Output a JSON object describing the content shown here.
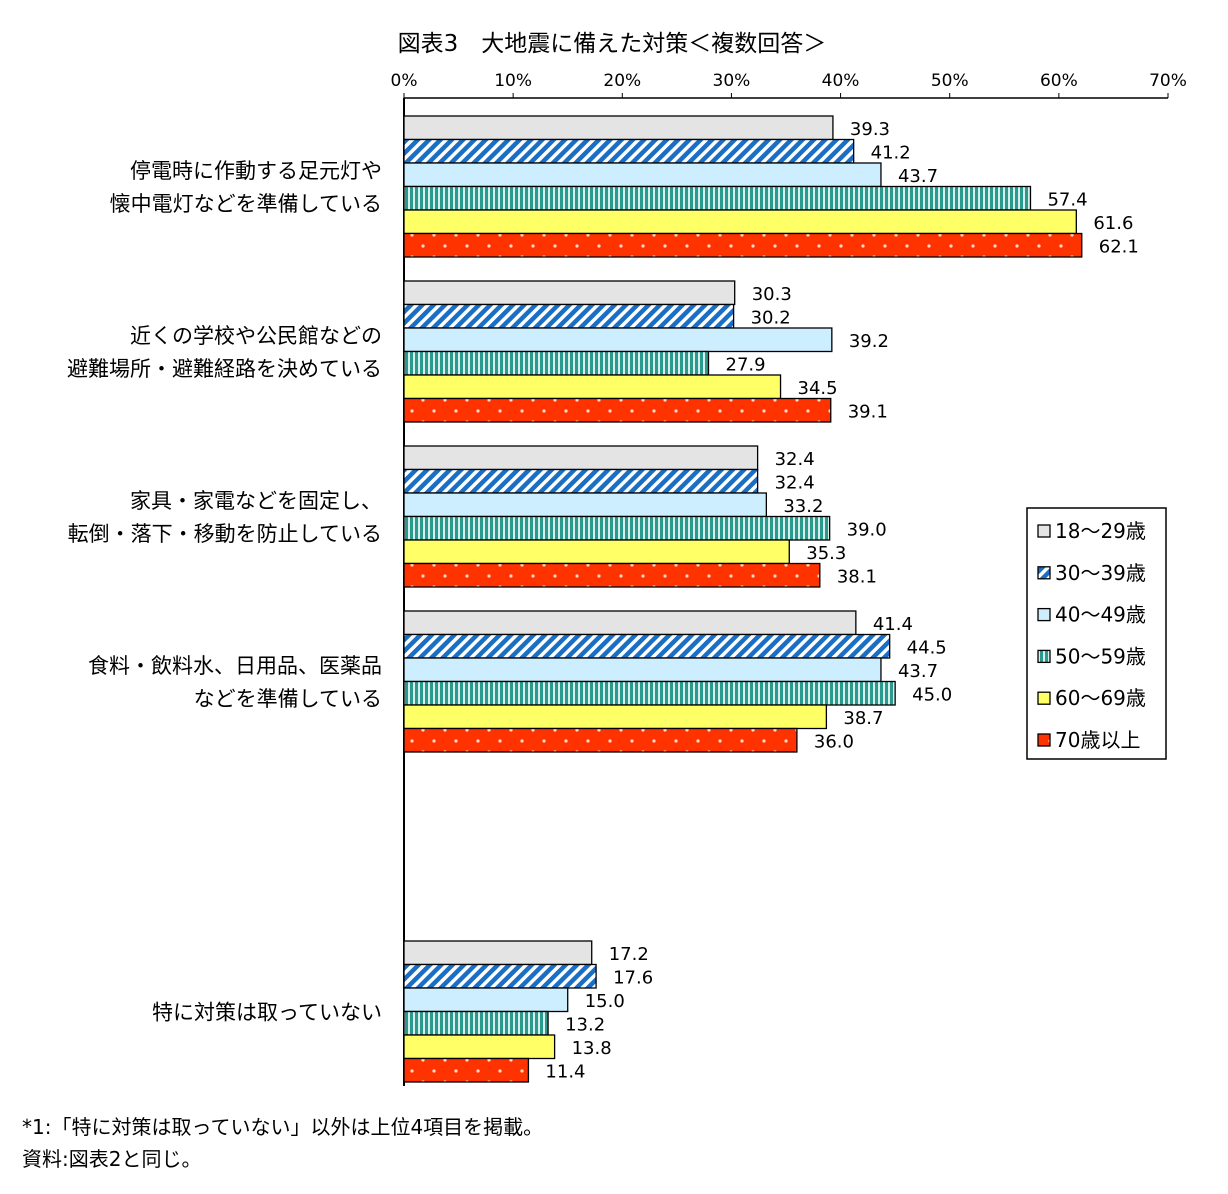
{
  "chart_data": {
    "type": "bar",
    "orientation": "horizontal",
    "title": "図表3　大地震に備えた対策＜複数回答＞",
    "xlim": [
      0,
      70
    ],
    "tick_labels": [
      "0%",
      "10%",
      "20%",
      "30%",
      "40%",
      "50%",
      "60%",
      "70%"
    ],
    "ticks": [
      0,
      10,
      20,
      30,
      40,
      50,
      60,
      70
    ],
    "grid": false,
    "legend_placement": "right",
    "categories": [
      [
        "停電時に作動する足元灯や",
        "懐中電灯などを準備している"
      ],
      [
        "近くの学校や公民館などの",
        "避難場所・避難経路を決めている"
      ],
      [
        "家具・家電などを固定し、",
        "転倒・落下・移動を防止している"
      ],
      [
        "食料・飲料水、日用品、医薬品",
        "などを準備している"
      ],
      [
        "特に対策は取っていない"
      ]
    ],
    "series": [
      {
        "name": "18～29歳",
        "values": [
          39.3,
          30.3,
          32.4,
          41.4,
          17.2
        ],
        "color": "#e4e4e4",
        "pattern": "solid"
      },
      {
        "name": "30～39歳",
        "values": [
          41.2,
          30.2,
          32.4,
          44.5,
          17.6
        ],
        "color": "#1a6fc4",
        "pattern": "diagonal-stripes"
      },
      {
        "name": "40～49歳",
        "values": [
          43.7,
          39.2,
          33.2,
          43.7,
          15.0
        ],
        "color": "#cceeff",
        "pattern": "solid"
      },
      {
        "name": "50～59歳",
        "values": [
          57.4,
          27.9,
          39.0,
          45.0,
          13.2
        ],
        "color": "#2a9a8e",
        "pattern": "vertical-stripes"
      },
      {
        "name": "60～69歳",
        "values": [
          61.6,
          34.5,
          35.3,
          38.7,
          13.8
        ],
        "color": "#ffff66",
        "pattern": "solid"
      },
      {
        "name": "70歳以上",
        "values": [
          62.1,
          39.1,
          38.1,
          36.0,
          11.4
        ],
        "color": "#ff3300",
        "pattern": "dots"
      }
    ],
    "notes": [
      "*1:「特に対策は取っていない」以外は上位4項目を掲載。",
      "資料:図表2と同じ。"
    ]
  }
}
